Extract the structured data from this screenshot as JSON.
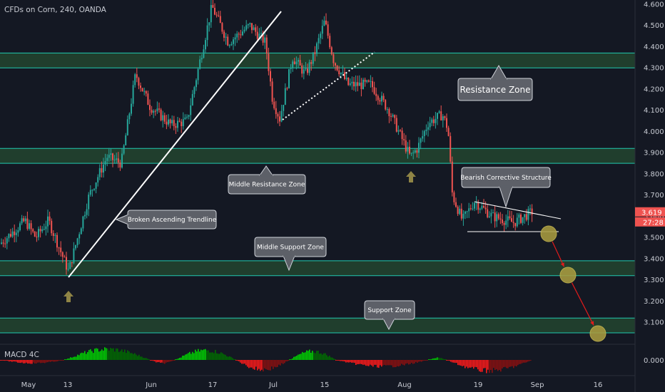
{
  "title": "CFDs on Corn, 240, OANDA",
  "colors": {
    "background": "#141823",
    "up": "#26a69a",
    "down": "#ef5350",
    "zone_fill": "#22452f",
    "zone_line": "#20c9b0",
    "callout_fill": "#5d6068",
    "arrow_marker": "#8f8445",
    "projection_circle": "#a99b40",
    "projection_arrow": "#e01b1b",
    "price_tag": "#ef5350",
    "axis_text": "#c8cbd3",
    "macd_up_strong": "#00d100",
    "macd_up_weak": "#006b00",
    "macd_down_strong": "#ff1a1a",
    "macd_down_weak": "#8a1010"
  },
  "price_tag": "3.619",
  "countdown_tag": "27:28",
  "macd_label": "MACD 4C",
  "macd_axis_label": "0.000",
  "annotations": {
    "resistance": "Resistance Zone",
    "middle_resistance": "Middle Resistance Zone",
    "middle_support": "Middle Support Zone",
    "support": "Support Zone",
    "broken_trendline": "Broken Ascending Trendline",
    "bearish_structure": "Bearish Corrective Structure"
  },
  "chart_data": {
    "type": "candlestick",
    "symbol": "CFDs on Corn",
    "interval": "240",
    "source": "OANDA",
    "y_ticks": [
      "4.600",
      "4.500",
      "4.400",
      "4.300",
      "4.200",
      "4.100",
      "4.000",
      "3.900",
      "3.800",
      "3.700",
      "3.600",
      "3.500",
      "3.400",
      "3.300",
      "3.200",
      "3.100"
    ],
    "x_ticks": [
      "May",
      "13",
      "Jun",
      "17",
      "Jul",
      "15",
      "Aug",
      "19",
      "Sep",
      "16"
    ],
    "ylim": [
      3.04,
      4.61
    ],
    "last_price": 3.619,
    "zones": [
      {
        "name": "Resistance Zone",
        "low": 4.3,
        "high": 4.37
      },
      {
        "name": "Middle Resistance Zone",
        "low": 3.85,
        "high": 3.92
      },
      {
        "name": "Middle Support Zone",
        "low": 3.32,
        "high": 3.39
      },
      {
        "name": "Support Zone",
        "low": 3.05,
        "high": 3.12
      }
    ],
    "trendlines": [
      {
        "name": "Broken Ascending Trendline",
        "from": [
          "13",
          3.34
        ],
        "to": [
          "Jul",
          4.56
        ]
      },
      {
        "name": "Bearish Corrective Structure upper",
        "from": [
          "19",
          3.7
        ],
        "to": [
          "Sep",
          3.58
        ]
      },
      {
        "name": "Bearish Corrective Structure lower",
        "from": [
          "19",
          3.55
        ],
        "to": [
          "Sep",
          3.55
        ]
      }
    ],
    "path_keypoints": [
      {
        "x": 0,
        "p": 3.47
      },
      {
        "x": 35,
        "p": 3.58
      },
      {
        "x": 50,
        "p": 3.5
      },
      {
        "x": 68,
        "p": 3.58
      },
      {
        "x": 96,
        "p": 3.34
      },
      {
        "x": 125,
        "p": 3.7
      },
      {
        "x": 150,
        "p": 3.88
      },
      {
        "x": 170,
        "p": 3.85
      },
      {
        "x": 190,
        "p": 4.27
      },
      {
        "x": 210,
        "p": 4.12
      },
      {
        "x": 240,
        "p": 4.03
      },
      {
        "x": 262,
        "p": 4.05
      },
      {
        "x": 282,
        "p": 4.36
      },
      {
        "x": 297,
        "p": 4.59
      },
      {
        "x": 320,
        "p": 4.42
      },
      {
        "x": 350,
        "p": 4.5
      },
      {
        "x": 372,
        "p": 4.42
      },
      {
        "x": 382,
        "p": 4.15
      },
      {
        "x": 392,
        "p": 4.06
      },
      {
        "x": 410,
        "p": 4.35
      },
      {
        "x": 428,
        "p": 4.27
      },
      {
        "x": 440,
        "p": 4.36
      },
      {
        "x": 455,
        "p": 4.52
      },
      {
        "x": 468,
        "p": 4.33
      },
      {
        "x": 488,
        "p": 4.22
      },
      {
        "x": 520,
        "p": 4.22
      },
      {
        "x": 545,
        "p": 4.1
      },
      {
        "x": 575,
        "p": 3.88
      },
      {
        "x": 585,
        "p": 3.92
      },
      {
        "x": 600,
        "p": 4.04
      },
      {
        "x": 620,
        "p": 4.08
      },
      {
        "x": 628,
        "p": 4.01
      },
      {
        "x": 634,
        "p": 3.7
      },
      {
        "x": 648,
        "p": 3.58
      },
      {
        "x": 665,
        "p": 3.67
      },
      {
        "x": 690,
        "p": 3.6
      },
      {
        "x": 720,
        "p": 3.57
      },
      {
        "x": 745,
        "p": 3.62
      }
    ],
    "projection": [
      {
        "label": "Bearish Corrective Structure",
        "price": 3.55
      },
      {
        "label": "Middle Support Zone",
        "price": 3.355
      },
      {
        "label": "Support Zone",
        "price": 3.085
      }
    ],
    "macd_histogram_sign": [
      {
        "from": 0,
        "to": 90,
        "sign": -1,
        "amp": 0.3
      },
      {
        "from": 90,
        "to": 210,
        "sign": 1,
        "amp": 1.0
      },
      {
        "from": 210,
        "to": 245,
        "sign": -1,
        "amp": 0.3
      },
      {
        "from": 245,
        "to": 330,
        "sign": 1,
        "amp": 0.9
      },
      {
        "from": 330,
        "to": 405,
        "sign": -1,
        "amp": 0.9
      },
      {
        "from": 405,
        "to": 470,
        "sign": 1,
        "amp": 0.8
      },
      {
        "from": 470,
        "to": 600,
        "sign": -1,
        "amp": 0.6
      },
      {
        "from": 600,
        "to": 625,
        "sign": 1,
        "amp": 0.2
      },
      {
        "from": 625,
        "to": 745,
        "sign": -1,
        "amp": 1.0
      }
    ]
  }
}
